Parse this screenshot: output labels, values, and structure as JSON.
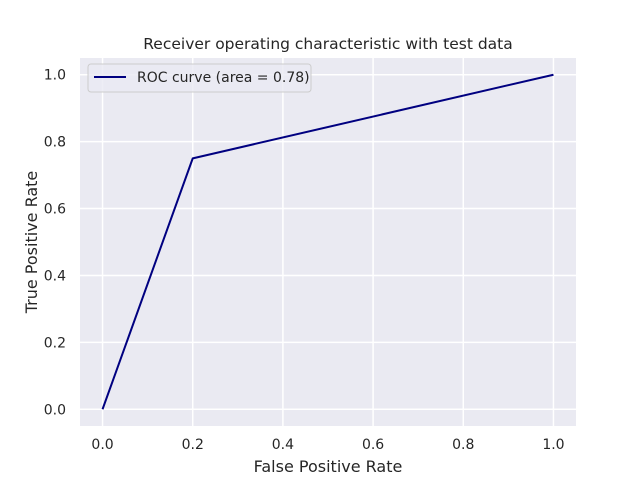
{
  "chart_data": {
    "type": "line",
    "title": "Receiver operating characteristic with test data",
    "xlabel": "False Positive Rate",
    "ylabel": "True Positive Rate",
    "xlim": [
      -0.05,
      1.05
    ],
    "ylim": [
      -0.05,
      1.05
    ],
    "xticks": [
      0.0,
      0.2,
      0.4,
      0.6,
      0.8,
      1.0
    ],
    "xtick_labels": [
      "0.0",
      "0.2",
      "0.4",
      "0.6",
      "0.8",
      "1.0"
    ],
    "yticks": [
      0.0,
      0.2,
      0.4,
      0.6,
      0.8,
      1.0
    ],
    "ytick_labels": [
      "0.0",
      "0.2",
      "0.4",
      "0.6",
      "0.8",
      "1.0"
    ],
    "grid": true,
    "legend_position": "top-left",
    "background_color": "#eaeaf2",
    "grid_color": "#ffffff",
    "series": [
      {
        "name": "ROC curve (area = 0.78)",
        "color": "#000080",
        "x": [
          0.0,
          0.2,
          1.0
        ],
        "y": [
          0.0,
          0.75,
          1.0
        ]
      }
    ]
  }
}
